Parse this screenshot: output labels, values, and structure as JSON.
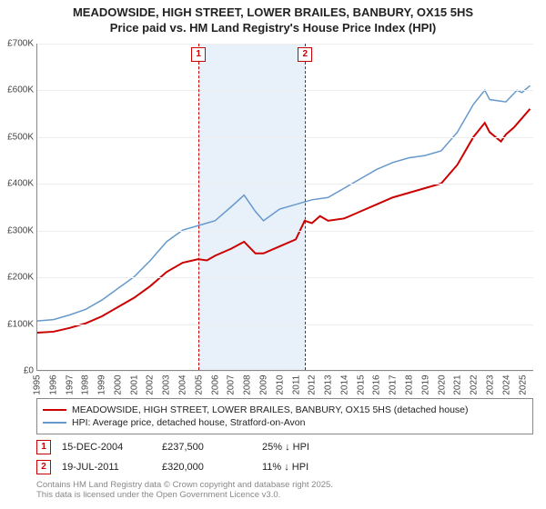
{
  "title_line1": "MEADOWSIDE, HIGH STREET, LOWER BRAILES, BANBURY, OX15 5HS",
  "title_line2": "Price paid vs. HM Land Registry's House Price Index (HPI)",
  "chart": {
    "type": "line",
    "background_color": "#ffffff",
    "grid_color": "#eeeeee",
    "axis_color": "#888888",
    "x_start": 1995,
    "x_end": 2025.7,
    "x_ticks": [
      1995,
      1996,
      1997,
      1998,
      1999,
      2000,
      2001,
      2002,
      2003,
      2004,
      2005,
      2006,
      2007,
      2008,
      2009,
      2010,
      2011,
      2012,
      2013,
      2014,
      2015,
      2016,
      2017,
      2018,
      2019,
      2020,
      2021,
      2022,
      2023,
      2024,
      2025
    ],
    "y_min": 0,
    "y_max": 700000,
    "y_ticks": [
      {
        "v": 0,
        "label": "£0"
      },
      {
        "v": 100000,
        "label": "£100K"
      },
      {
        "v": 200000,
        "label": "£200K"
      },
      {
        "v": 300000,
        "label": "£300K"
      },
      {
        "v": 400000,
        "label": "£400K"
      },
      {
        "v": 500000,
        "label": "£500K"
      },
      {
        "v": 600000,
        "label": "£600K"
      },
      {
        "v": 700000,
        "label": "£700K"
      }
    ],
    "band": {
      "from": 2004.96,
      "to": 2011.55,
      "color": "#e8f0fa"
    },
    "markers": [
      {
        "id": "1",
        "x": 2004.96,
        "color": "#cc0000"
      },
      {
        "id": "2",
        "x": 2011.55,
        "color": "#cc0000"
      }
    ],
    "series": [
      {
        "name": "property",
        "color": "#cc0000",
        "width": 2,
        "points": [
          [
            1995,
            80000
          ],
          [
            1996,
            82000
          ],
          [
            1997,
            90000
          ],
          [
            1998,
            100000
          ],
          [
            1999,
            115000
          ],
          [
            2000,
            135000
          ],
          [
            2001,
            155000
          ],
          [
            2002,
            180000
          ],
          [
            2003,
            210000
          ],
          [
            2004,
            230000
          ],
          [
            2004.96,
            237500
          ],
          [
            2005.5,
            235000
          ],
          [
            2006,
            245000
          ],
          [
            2007,
            260000
          ],
          [
            2007.8,
            275000
          ],
          [
            2008.5,
            250000
          ],
          [
            2009,
            250000
          ],
          [
            2010,
            265000
          ],
          [
            2011,
            280000
          ],
          [
            2011.55,
            320000
          ],
          [
            2012,
            315000
          ],
          [
            2012.5,
            330000
          ],
          [
            2013,
            320000
          ],
          [
            2014,
            325000
          ],
          [
            2015,
            340000
          ],
          [
            2016,
            355000
          ],
          [
            2017,
            370000
          ],
          [
            2018,
            380000
          ],
          [
            2019,
            390000
          ],
          [
            2020,
            400000
          ],
          [
            2021,
            440000
          ],
          [
            2022,
            500000
          ],
          [
            2022.7,
            530000
          ],
          [
            2023,
            510000
          ],
          [
            2023.7,
            490000
          ],
          [
            2024,
            505000
          ],
          [
            2024.5,
            520000
          ],
          [
            2025,
            540000
          ],
          [
            2025.5,
            560000
          ]
        ]
      },
      {
        "name": "hpi",
        "color": "#6699cc",
        "width": 1.5,
        "points": [
          [
            1995,
            105000
          ],
          [
            1996,
            108000
          ],
          [
            1997,
            118000
          ],
          [
            1998,
            130000
          ],
          [
            1999,
            150000
          ],
          [
            2000,
            175000
          ],
          [
            2001,
            200000
          ],
          [
            2002,
            235000
          ],
          [
            2003,
            275000
          ],
          [
            2004,
            300000
          ],
          [
            2005,
            310000
          ],
          [
            2006,
            320000
          ],
          [
            2007,
            350000
          ],
          [
            2007.8,
            375000
          ],
          [
            2008.5,
            340000
          ],
          [
            2009,
            320000
          ],
          [
            2010,
            345000
          ],
          [
            2011,
            355000
          ],
          [
            2012,
            365000
          ],
          [
            2013,
            370000
          ],
          [
            2014,
            390000
          ],
          [
            2015,
            410000
          ],
          [
            2016,
            430000
          ],
          [
            2017,
            445000
          ],
          [
            2018,
            455000
          ],
          [
            2019,
            460000
          ],
          [
            2020,
            470000
          ],
          [
            2021,
            510000
          ],
          [
            2022,
            570000
          ],
          [
            2022.7,
            600000
          ],
          [
            2023,
            580000
          ],
          [
            2024,
            575000
          ],
          [
            2024.7,
            600000
          ],
          [
            2025,
            595000
          ],
          [
            2025.5,
            610000
          ]
        ]
      }
    ]
  },
  "legend": {
    "series1": "MEADOWSIDE, HIGH STREET, LOWER BRAILES, BANBURY, OX15 5HS (detached house)",
    "series2": "HPI: Average price, detached house, Stratford-on-Avon",
    "color1": "#cc0000",
    "color2": "#6699cc"
  },
  "sales": [
    {
      "id": "1",
      "date": "15-DEC-2004",
      "price": "£237,500",
      "delta": "25% ↓ HPI",
      "color": "#cc0000"
    },
    {
      "id": "2",
      "date": "19-JUL-2011",
      "price": "£320,000",
      "delta": "11% ↓ HPI",
      "color": "#cc0000"
    }
  ],
  "footer_line1": "Contains HM Land Registry data © Crown copyright and database right 2025.",
  "footer_line2": "This data is licensed under the Open Government Licence v3.0."
}
